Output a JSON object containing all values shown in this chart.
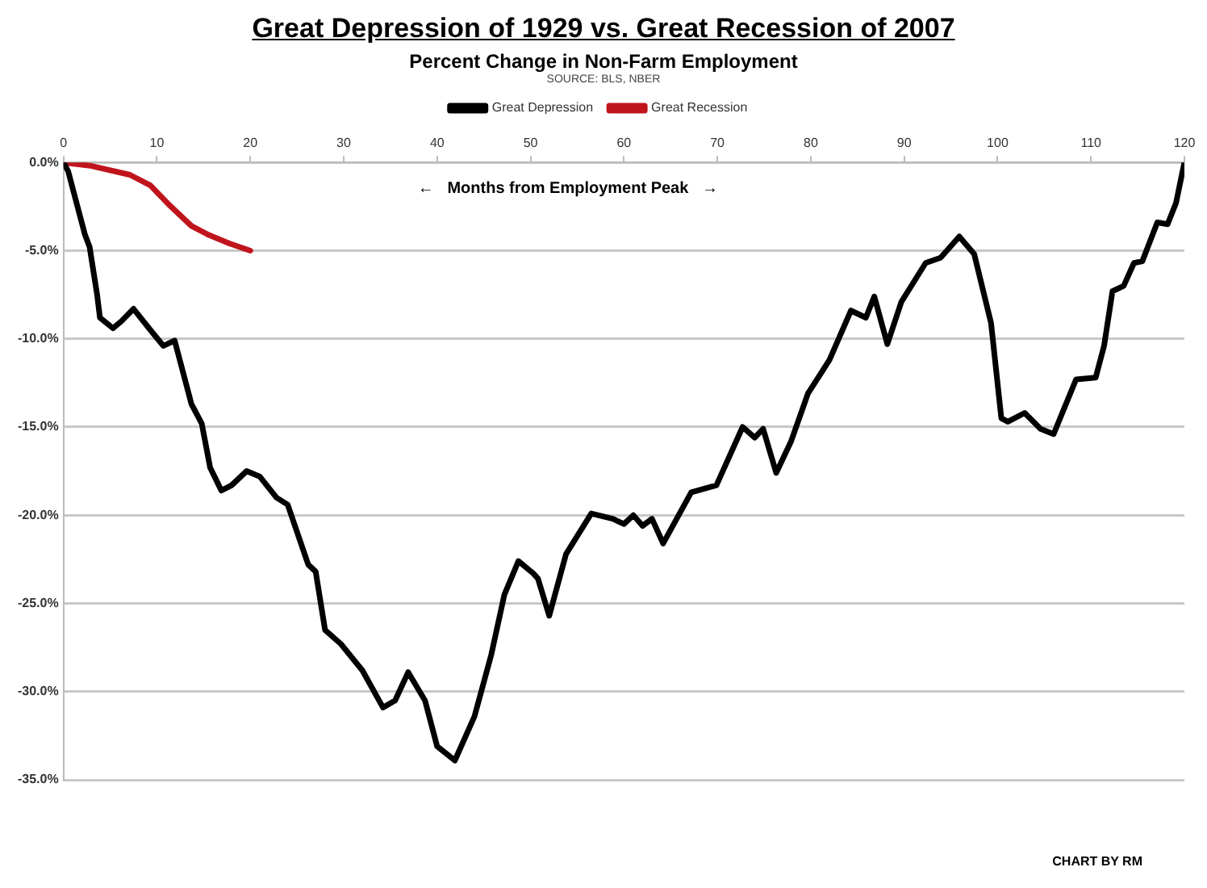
{
  "chart_data": {
    "type": "line",
    "title": "Great Depression of 1929 vs. Great Recession of 2007",
    "subtitle": "Percent Change in Non-Farm Employment",
    "xlabel": "←   Months from Employment Peak   →",
    "annotations": [
      "SOURCE: BLS, NBER",
      "CHART BY RM"
    ],
    "series": [
      {
        "name": "Great Depression",
        "color": "#000000",
        "x": [
          0,
          0.5,
          1.5,
          2.3,
          2.8,
          3.6,
          3.9,
          5.3,
          6.2,
          7.5,
          9.3,
          10.7,
          11.9,
          13.7,
          14.8,
          15.7,
          16.9,
          18,
          19.6,
          21,
          22.8,
          24,
          26.2,
          27,
          28,
          29.7,
          32,
          34.2,
          35.5,
          36.9,
          38.7,
          40,
          41.9,
          44,
          45.8,
          47.2,
          48.7,
          50.3,
          50.8,
          52,
          53.8,
          56.5,
          58.8,
          60,
          61,
          62,
          63,
          64.2,
          67.2,
          69.9,
          72.7,
          74,
          74.9,
          76.3,
          77.9,
          79.7,
          82,
          84.3,
          85.9,
          86.8,
          88.2,
          89.7,
          92.3,
          93.9,
          95.9,
          97.5,
          99.3,
          100.4,
          101.1,
          102.9,
          104.6,
          106,
          108.4,
          110.5,
          111.4,
          112.3,
          113.5,
          114.6,
          115.5,
          117.1,
          118.2,
          119.1,
          120
        ],
        "values": [
          0,
          -0.5,
          -2.5,
          -4.1,
          -4.8,
          -7.5,
          -8.8,
          -9.4,
          -9.0,
          -8.3,
          -9.5,
          -10.4,
          -10.1,
          -13.7,
          -14.8,
          -17.3,
          -18.6,
          -18.3,
          -17.5,
          -17.8,
          -19.0,
          -19.4,
          -22.8,
          -23.2,
          -26.5,
          -27.3,
          -28.8,
          -30.9,
          -30.5,
          -28.9,
          -30.5,
          -33.1,
          -33.9,
          -31.4,
          -27.9,
          -24.5,
          -22.6,
          -23.3,
          -23.6,
          -25.7,
          -22.2,
          -19.9,
          -20.2,
          -20.5,
          -20.0,
          -20.6,
          -20.2,
          -21.6,
          -18.7,
          -18.3,
          -15.0,
          -15.6,
          -15.1,
          -17.6,
          -15.8,
          -13.1,
          -11.2,
          -8.4,
          -8.8,
          -7.6,
          -10.3,
          -7.9,
          -5.7,
          -5.4,
          -4.2,
          -5.2,
          -9.1,
          -14.5,
          -14.7,
          -14.2,
          -15.1,
          -15.4,
          -12.3,
          -12.2,
          -10.4,
          -7.3,
          -7.0,
          -5.7,
          -5.6,
          -3.4,
          -3.5,
          -2.3,
          0
        ]
      },
      {
        "name": "Great Recession",
        "color": "#c0141c",
        "x": [
          0,
          3,
          7.1,
          9.3,
          11.3,
          13.7,
          15.5,
          17.8,
          20
        ],
        "values": [
          0,
          -0.2,
          -0.7,
          -1.3,
          -2.4,
          -3.6,
          -4.1,
          -4.6,
          -5.0
        ]
      }
    ],
    "xlim": [
      0,
      120
    ],
    "xticks": [
      0,
      10,
      20,
      30,
      40,
      50,
      60,
      70,
      80,
      90,
      100,
      110,
      120
    ],
    "ylim": [
      -35,
      0
    ],
    "yticks": [
      {
        "value": 0,
        "label": "0.0%"
      },
      {
        "value": -5,
        "label": "-5.0%"
      },
      {
        "value": -10,
        "label": "-10.0%"
      },
      {
        "value": -15,
        "label": "-15.0%"
      },
      {
        "value": -20,
        "label": "-20.0%"
      },
      {
        "value": -25,
        "label": "-25.0%"
      },
      {
        "value": -30,
        "label": "-30.0%"
      },
      {
        "value": -35,
        "label": "-35.0%"
      }
    ],
    "grid": "y",
    "legend": "top",
    "marker": "none",
    "line_style": "solid"
  }
}
